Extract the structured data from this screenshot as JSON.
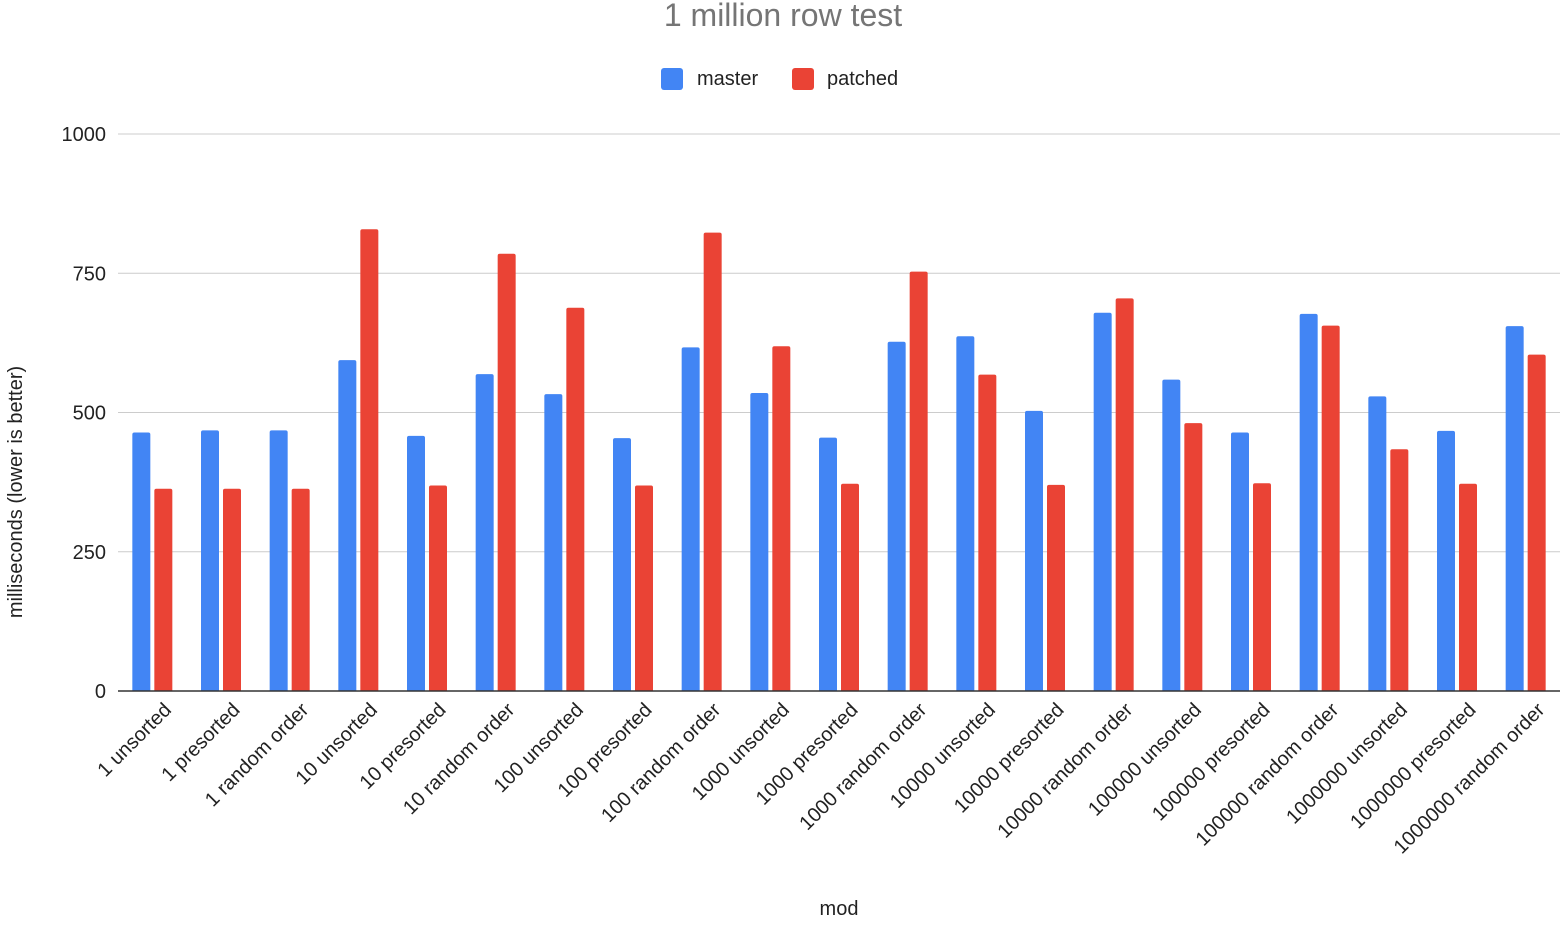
{
  "chart_data": {
    "type": "bar",
    "title": "1 million row test",
    "xlabel": "mod",
    "ylabel": "milliseconds (lower is better)",
    "ylim": [
      0,
      1000
    ],
    "yticks": [
      0,
      250,
      500,
      750,
      1000
    ],
    "grid": true,
    "legend_position": "top",
    "categories": [
      "1 unsorted",
      "1 presorted",
      "1 random order",
      "10 unsorted",
      "10 presorted",
      "10 random order",
      "100 unsorted",
      "100 presorted",
      "100 random order",
      "1000 unsorted",
      "1000 presorted",
      "1000 random order",
      "10000 unsorted",
      "10000 presorted",
      "10000 random order",
      "100000 unsorted",
      "100000 presorted",
      "100000 random order",
      "1000000 unsorted",
      "1000000 presorted",
      "1000000 random order"
    ],
    "series": [
      {
        "name": "master",
        "color": "#4285f4",
        "values": [
          464,
          468,
          468,
          594,
          458,
          569,
          533,
          454,
          617,
          535,
          455,
          627,
          637,
          503,
          679,
          559,
          464,
          677,
          529,
          467,
          655
        ]
      },
      {
        "name": "patched",
        "color": "#ea4335",
        "values": [
          363,
          363,
          363,
          829,
          369,
          785,
          688,
          369,
          823,
          619,
          372,
          753,
          568,
          370,
          705,
          481,
          373,
          656,
          434,
          372,
          604
        ]
      }
    ]
  }
}
